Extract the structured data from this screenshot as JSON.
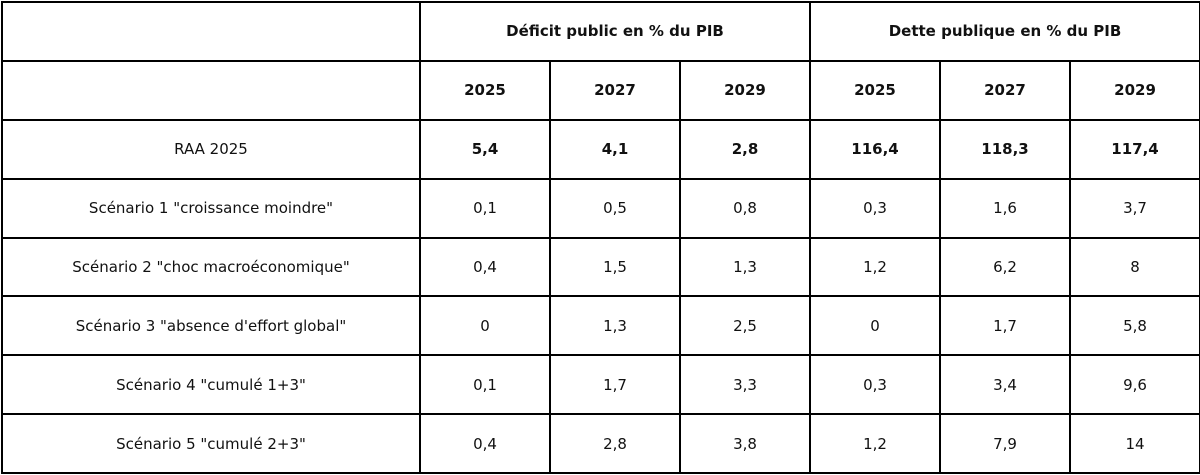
{
  "header": {
    "group_deficit": "Déficit public en % du PIB",
    "group_dette": "Dette publique en % du PIB",
    "years": [
      "2025",
      "2027",
      "2029",
      "2025",
      "2027",
      "2029"
    ]
  },
  "rows": [
    {
      "label": "RAA 2025",
      "values": [
        "5,4",
        "4,1",
        "2,8",
        "116,4",
        "118,3",
        "117,4"
      ],
      "bold_values": true
    },
    {
      "label": "Scénario 1 \"croissance moindre\"",
      "values": [
        "0,1",
        "0,5",
        "0,8",
        "0,3",
        "1,6",
        "3,7"
      ]
    },
    {
      "label": "Scénario 2 \"choc macroéconomique\"",
      "values": [
        "0,4",
        "1,5",
        "1,3",
        "1,2",
        "6,2",
        "8"
      ]
    },
    {
      "label": "Scénario 3 \"absence d'effort global\"",
      "values": [
        "0",
        "1,3",
        "2,5",
        "0",
        "1,7",
        "5,8"
      ]
    },
    {
      "label": "Scénario 4 \"cumulé 1+3\"",
      "values": [
        "0,1",
        "1,7",
        "3,3",
        "0,3",
        "3,4",
        "9,6"
      ]
    },
    {
      "label": "Scénario 5 \"cumulé 2+3\"",
      "values": [
        "0,4",
        "2,8",
        "3,8",
        "1,2",
        "7,9",
        "14"
      ]
    }
  ]
}
